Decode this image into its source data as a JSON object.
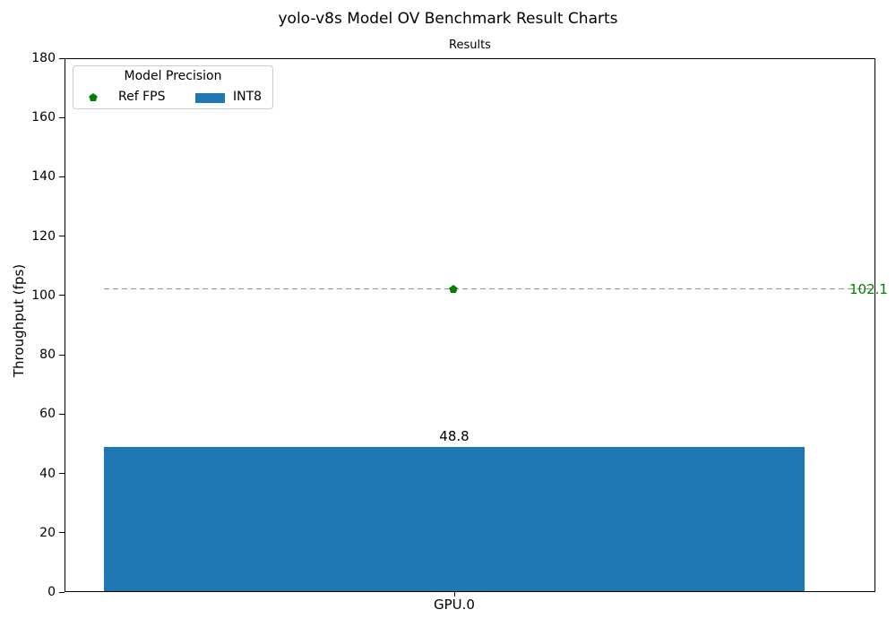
{
  "figure": {
    "title": "yolo-v8s Model OV Benchmark Result Charts"
  },
  "chart_data": {
    "type": "bar",
    "title": "Results",
    "xlabel": "",
    "ylabel": "Throughput (fps)",
    "ylim": [
      0,
      180
    ],
    "y_ticks": [
      0,
      20,
      40,
      60,
      80,
      100,
      120,
      140,
      160,
      180
    ],
    "grid": false,
    "categories": [
      "GPU.0"
    ],
    "series": [
      {
        "name": "INT8",
        "kind": "bar",
        "values": [
          48.8
        ],
        "value_labels": [
          "48.8"
        ],
        "color": "#1f77b4"
      },
      {
        "name": "Ref FPS",
        "kind": "reference_line",
        "values": [
          102.1
        ],
        "value_labels": [
          "102.1"
        ],
        "color": "#008000",
        "line_color": "#909090",
        "line_style": "dashed",
        "marker": "pentagon"
      }
    ],
    "legend": {
      "title": "Model Precision",
      "location": "upper left",
      "entries": [
        {
          "label": "Ref FPS",
          "marker": "pentagon",
          "color": "#008000"
        },
        {
          "label": "INT8",
          "marker": "rect",
          "color": "#1f77b4"
        }
      ]
    }
  }
}
